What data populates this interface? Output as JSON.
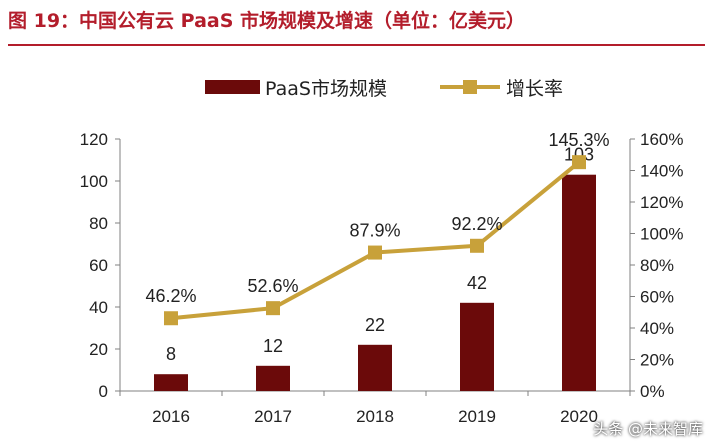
{
  "figure": {
    "title": "图 19：中国公有云 PaaS 市场规模及增速（单位：亿美元）",
    "watermark": "头条 @未来智库"
  },
  "colors": {
    "title": "#b31d2b",
    "bar": "#6b0a0a",
    "line": "#c8a13a",
    "axis": "#808080",
    "text": "#222222"
  },
  "chart_data": {
    "type": "bar+line",
    "title": "中国公有云 PaaS 市场规模及增速（单位：亿美元）",
    "categories": [
      "2016",
      "2017",
      "2018",
      "2019",
      "2020"
    ],
    "series": [
      {
        "name": "PaaS市场规模",
        "type": "bar",
        "axis": "left",
        "values": [
          8,
          12,
          22,
          42,
          103
        ],
        "labels": [
          "8",
          "12",
          "22",
          "42",
          "103"
        ]
      },
      {
        "name": "增长率",
        "type": "line",
        "axis": "right",
        "values": [
          46.2,
          52.6,
          87.9,
          92.2,
          145.3
        ],
        "labels": [
          "46.2%",
          "52.6%",
          "87.9%",
          "92.2%",
          "145.3%"
        ]
      }
    ],
    "y_left": {
      "min": 0,
      "max": 120,
      "step": 20,
      "ticks": [
        "0",
        "20",
        "40",
        "60",
        "80",
        "100",
        "120"
      ]
    },
    "y_right": {
      "min": 0,
      "max": 160,
      "step": 20,
      "ticks": [
        "0%",
        "20%",
        "40%",
        "60%",
        "80%",
        "100%",
        "120%",
        "140%",
        "160%"
      ]
    },
    "legend": {
      "position": "top-center"
    },
    "grid": false
  }
}
